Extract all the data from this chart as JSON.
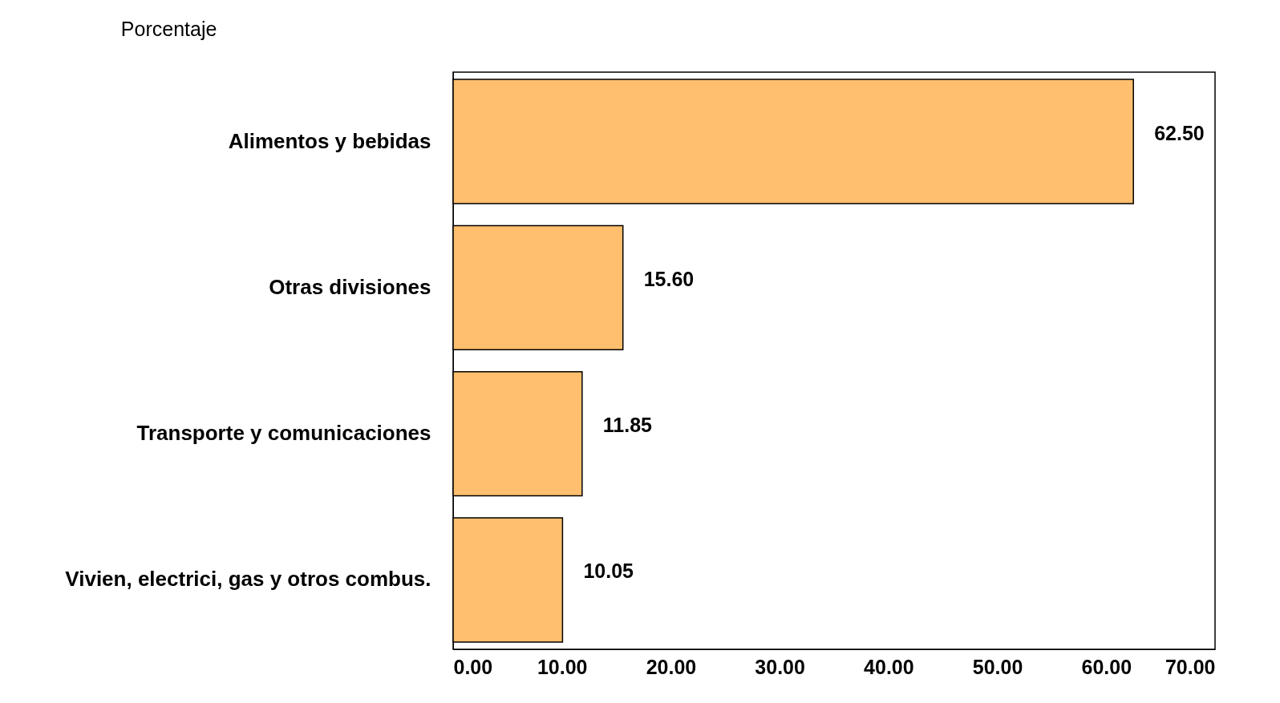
{
  "chart_data": {
    "type": "bar",
    "orientation": "horizontal",
    "xlabel": "Porcentaje",
    "categories": [
      "Alimentos  y bebidas",
      "Otras divisiones",
      "Transporte y comunicaciones",
      "Vivien, electrici, gas y otros combus."
    ],
    "values": [
      62.5,
      15.6,
      11.85,
      10.05
    ],
    "value_labels": [
      "62.50",
      "15.60",
      "11.85",
      "10.05"
    ],
    "color": "#ffbf6e",
    "xlim": [
      0,
      70
    ],
    "xticks": [
      {
        "value": 0,
        "label": "0.00"
      },
      {
        "value": 10,
        "label": "10.00"
      },
      {
        "value": 20,
        "label": "20.00"
      },
      {
        "value": 30,
        "label": "30.00"
      },
      {
        "value": 40,
        "label": "40.00"
      },
      {
        "value": 50,
        "label": "50.00"
      },
      {
        "value": 60,
        "label": "60.00"
      },
      {
        "value": 70,
        "label": "70.00"
      }
    ],
    "grid": false
  }
}
